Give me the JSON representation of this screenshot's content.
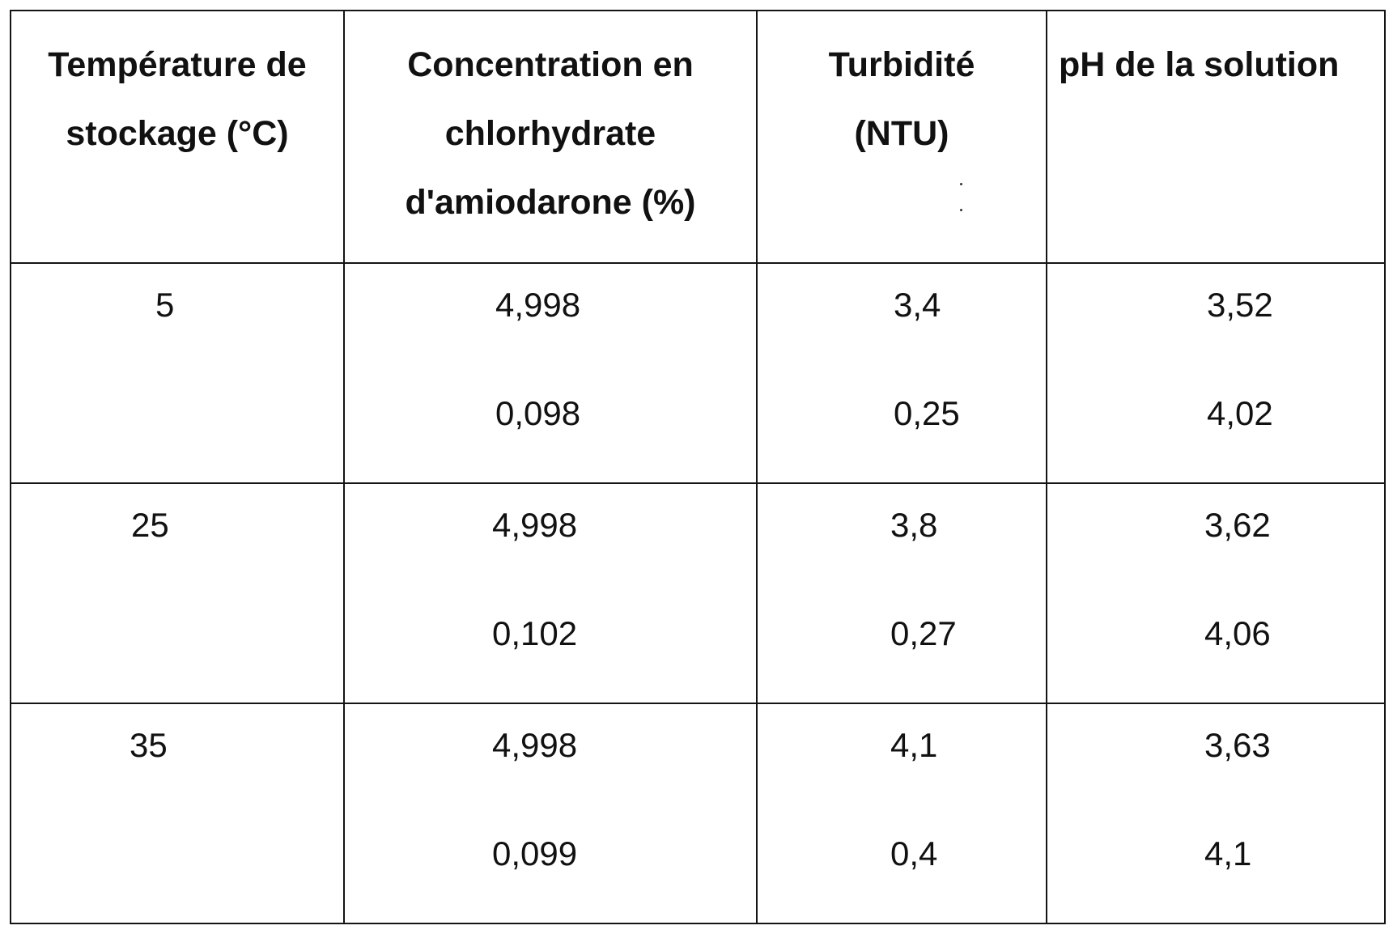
{
  "table": {
    "headers": [
      [
        "Température de",
        "stockage (°C)"
      ],
      [
        "Concentration en",
        "chlorhydrate",
        "d'amiodarone (%)"
      ],
      [
        "Turbidité",
        "(NTU)"
      ],
      [
        "pH de la solution"
      ]
    ],
    "rows": [
      {
        "temperature": "5",
        "concentration": [
          "4,998",
          "0,098"
        ],
        "turbidity": [
          "3,4",
          "0,25"
        ],
        "ph": [
          "3,52",
          "4,02"
        ]
      },
      {
        "temperature": "25",
        "concentration": [
          "4,998",
          "0,102"
        ],
        "turbidity": [
          "3,8",
          "0,27"
        ],
        "ph": [
          "3,62",
          "4,06"
        ]
      },
      {
        "temperature": "35",
        "concentration": [
          "4,998",
          "0,099"
        ],
        "turbidity": [
          "4,1",
          "0,4"
        ],
        "ph": [
          "3,63",
          "4,1"
        ]
      }
    ]
  }
}
